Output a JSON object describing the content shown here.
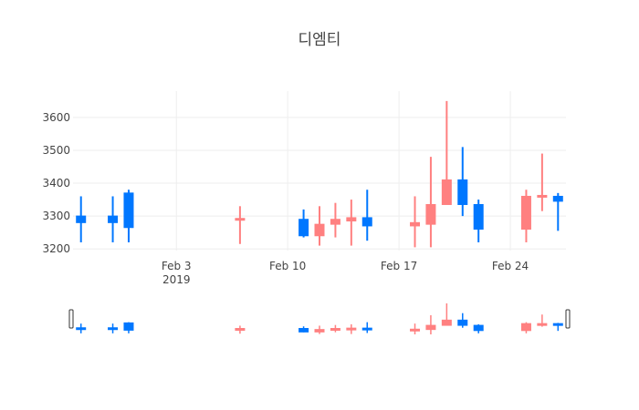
{
  "chart_data": {
    "type": "candlestick",
    "title": "디엠티",
    "xlabel": "",
    "ylabel": "",
    "x_range": [
      "2019-01-28",
      "2019-02-28"
    ],
    "ylim": [
      3195,
      3680
    ],
    "y_ticks": [
      3200,
      3300,
      3400,
      3500,
      3600
    ],
    "x_ticks": [
      {
        "date": "2019-02-03",
        "label": "Feb 3",
        "sublabel": "2019"
      },
      {
        "date": "2019-02-10",
        "label": "Feb 10",
        "sublabel": ""
      },
      {
        "date": "2019-02-17",
        "label": "Feb 17",
        "sublabel": ""
      },
      {
        "date": "2019-02-24",
        "label": "Feb 24",
        "sublabel": ""
      }
    ],
    "grid": true,
    "legend": false,
    "rangeslider": true,
    "colors": {
      "increasing": "#FF8080",
      "decreasing": "#0077FF",
      "grid": "#eeeeee"
    },
    "candles": [
      {
        "date": "2019-01-28",
        "open": 3300,
        "high": 3360,
        "low": 3220,
        "close": 3280
      },
      {
        "date": "2019-01-30",
        "open": 3300,
        "high": 3360,
        "low": 3220,
        "close": 3280
      },
      {
        "date": "2019-01-31",
        "open": 3370,
        "high": 3380,
        "low": 3220,
        "close": 3265
      },
      {
        "date": "2019-02-07",
        "open": 3290,
        "high": 3330,
        "low": 3215,
        "close": 3290
      },
      {
        "date": "2019-02-11",
        "open": 3290,
        "high": 3320,
        "low": 3235,
        "close": 3240
      },
      {
        "date": "2019-02-12",
        "open": 3240,
        "high": 3330,
        "low": 3210,
        "close": 3275
      },
      {
        "date": "2019-02-13",
        "open": 3275,
        "high": 3340,
        "low": 3235,
        "close": 3290
      },
      {
        "date": "2019-02-14",
        "open": 3285,
        "high": 3350,
        "low": 3210,
        "close": 3295
      },
      {
        "date": "2019-02-15",
        "open": 3295,
        "high": 3380,
        "low": 3225,
        "close": 3270
      },
      {
        "date": "2019-02-18",
        "open": 3270,
        "high": 3360,
        "low": 3205,
        "close": 3280
      },
      {
        "date": "2019-02-19",
        "open": 3275,
        "high": 3480,
        "low": 3205,
        "close": 3335
      },
      {
        "date": "2019-02-20",
        "open": 3335,
        "high": 3650,
        "low": 3335,
        "close": 3410
      },
      {
        "date": "2019-02-21",
        "open": 3410,
        "high": 3510,
        "low": 3300,
        "close": 3335
      },
      {
        "date": "2019-02-22",
        "open": 3335,
        "high": 3350,
        "low": 3220,
        "close": 3260
      },
      {
        "date": "2019-02-25",
        "open": 3260,
        "high": 3380,
        "low": 3220,
        "close": 3360
      },
      {
        "date": "2019-02-26",
        "open": 3355,
        "high": 3490,
        "low": 3315,
        "close": 3360
      },
      {
        "date": "2019-02-27",
        "open": 3360,
        "high": 3370,
        "low": 3255,
        "close": 3345
      }
    ]
  }
}
